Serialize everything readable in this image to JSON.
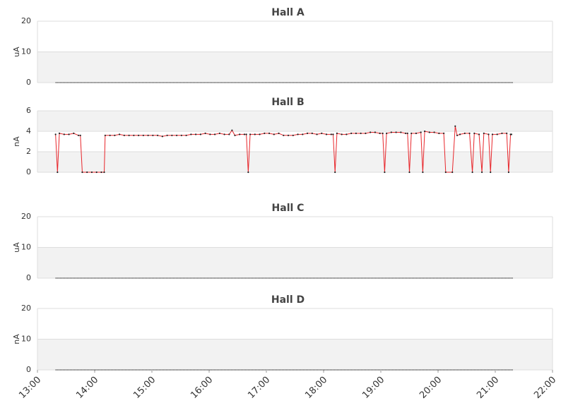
{
  "chart_data": [
    {
      "type": "line",
      "title": "Hall A",
      "y_label": "uA",
      "ylim": [
        0,
        20
      ],
      "yticks": [
        0,
        10,
        20
      ],
      "alternate_bands": true,
      "x": [
        "13:19",
        "13:29",
        "13:39",
        "13:49",
        "13:59",
        "14:09",
        "14:19",
        "14:29",
        "14:39",
        "14:49",
        "14:59",
        "15:09",
        "15:19",
        "15:29",
        "15:39",
        "15:49",
        "15:59",
        "16:09",
        "16:19",
        "16:29",
        "16:39",
        "16:49",
        "16:59",
        "17:09",
        "17:19",
        "17:29",
        "17:39",
        "17:49",
        "17:59",
        "18:09",
        "18:19",
        "18:29",
        "18:39",
        "18:49",
        "18:59",
        "19:09",
        "19:19",
        "19:29",
        "19:39",
        "19:49",
        "19:59",
        "20:09",
        "20:19",
        "20:29",
        "20:39",
        "20:49",
        "20:59",
        "21:09",
        "21:19"
      ],
      "color": "#333333",
      "dashed": true,
      "values": [
        0,
        0,
        0,
        0,
        0,
        0,
        0,
        0,
        0,
        0,
        0,
        0,
        0,
        0,
        0,
        0,
        0,
        0,
        0,
        0,
        0,
        0,
        0,
        0,
        0,
        0,
        0,
        0,
        0,
        0,
        0,
        0,
        0,
        0,
        0,
        0,
        0,
        0,
        0,
        0,
        0,
        0,
        0,
        0,
        0,
        0,
        0,
        0,
        0
      ]
    },
    {
      "type": "line",
      "title": "Hall B",
      "y_label": "nA",
      "ylim": [
        0,
        6
      ],
      "yticks": [
        0,
        2,
        4,
        6
      ],
      "alternate_bands": true,
      "x": [
        "13:19",
        "13:21",
        "13:23",
        "13:28",
        "13:33",
        "13:38",
        "13:43",
        "13:45",
        "13:47",
        "13:52",
        "13:57",
        "14:02",
        "14:07",
        "14:10",
        "14:11",
        "14:16",
        "14:21",
        "14:26",
        "14:31",
        "14:36",
        "14:41",
        "14:46",
        "14:51",
        "14:56",
        "15:01",
        "15:06",
        "15:11",
        "15:16",
        "15:21",
        "15:26",
        "15:31",
        "15:36",
        "15:41",
        "15:46",
        "15:51",
        "15:56",
        "16:01",
        "16:06",
        "16:11",
        "16:16",
        "16:21",
        "16:24",
        "16:27",
        "16:32",
        "16:37",
        "16:39",
        "16:41",
        "16:43",
        "16:48",
        "16:53",
        "16:58",
        "17:03",
        "17:08",
        "17:13",
        "17:18",
        "17:23",
        "17:28",
        "17:33",
        "17:38",
        "17:43",
        "17:48",
        "17:53",
        "17:58",
        "18:03",
        "18:08",
        "18:10",
        "18:12",
        "18:14",
        "18:19",
        "18:24",
        "18:29",
        "18:34",
        "18:39",
        "18:44",
        "18:49",
        "18:54",
        "18:59",
        "19:02",
        "19:04",
        "19:06",
        "19:11",
        "19:16",
        "19:21",
        "19:26",
        "19:28",
        "19:30",
        "19:32",
        "19:37",
        "19:42",
        "19:44",
        "19:46",
        "19:51",
        "19:56",
        "20:01",
        "20:06",
        "20:08",
        "20:15",
        "20:18",
        "20:20",
        "20:23",
        "20:28",
        "20:33",
        "20:36",
        "20:38",
        "20:43",
        "20:46",
        "20:48",
        "20:53",
        "20:55",
        "20:57",
        "21:02",
        "21:07",
        "21:12",
        "21:14",
        "21:16",
        "21:17"
      ],
      "color": "#e8262b",
      "marker_color": "#222222",
      "values": [
        3.7,
        0,
        3.8,
        3.7,
        3.7,
        3.8,
        3.6,
        3.6,
        0,
        0,
        0,
        0,
        0,
        0,
        3.6,
        3.6,
        3.6,
        3.7,
        3.6,
        3.6,
        3.6,
        3.6,
        3.6,
        3.6,
        3.6,
        3.6,
        3.5,
        3.6,
        3.6,
        3.6,
        3.6,
        3.6,
        3.7,
        3.7,
        3.7,
        3.8,
        3.7,
        3.7,
        3.8,
        3.7,
        3.7,
        4.1,
        3.6,
        3.7,
        3.7,
        3.7,
        0,
        3.7,
        3.7,
        3.7,
        3.8,
        3.8,
        3.7,
        3.8,
        3.6,
        3.6,
        3.6,
        3.7,
        3.7,
        3.8,
        3.8,
        3.7,
        3.8,
        3.7,
        3.7,
        3.7,
        0,
        3.8,
        3.7,
        3.7,
        3.8,
        3.8,
        3.8,
        3.8,
        3.9,
        3.9,
        3.8,
        3.8,
        0,
        3.8,
        3.9,
        3.9,
        3.9,
        3.8,
        3.8,
        0,
        3.8,
        3.8,
        3.9,
        0,
        4.0,
        3.9,
        3.9,
        3.8,
        3.8,
        0,
        0,
        4.5,
        3.6,
        3.7,
        3.8,
        3.8,
        0,
        3.8,
        3.7,
        0,
        3.8,
        3.7,
        0,
        3.7,
        3.7,
        3.8,
        3.8,
        0,
        3.7,
        3.7
      ]
    },
    {
      "type": "line",
      "title": "Hall C",
      "y_label": "uA",
      "ylim": [
        0,
        20
      ],
      "yticks": [
        0,
        10,
        20
      ],
      "alternate_bands": true,
      "x": [
        "13:19",
        "13:29",
        "13:39",
        "13:49",
        "13:59",
        "14:09",
        "14:19",
        "14:29",
        "14:39",
        "14:49",
        "14:59",
        "15:09",
        "15:19",
        "15:29",
        "15:39",
        "15:49",
        "15:59",
        "16:09",
        "16:19",
        "16:29",
        "16:39",
        "16:49",
        "16:59",
        "17:09",
        "17:19",
        "17:29",
        "17:39",
        "17:49",
        "17:59",
        "18:09",
        "18:19",
        "18:29",
        "18:39",
        "18:49",
        "18:59",
        "19:09",
        "19:19",
        "19:29",
        "19:39",
        "19:49",
        "19:59",
        "20:09",
        "20:19",
        "20:29",
        "20:39",
        "20:49",
        "20:59",
        "21:09",
        "21:19"
      ],
      "color": "#333333",
      "dashed": true,
      "values": [
        0,
        0,
        0,
        0,
        0,
        0,
        0,
        0,
        0,
        0,
        0,
        0,
        0,
        0,
        0,
        0,
        0,
        0,
        0,
        0,
        0,
        0,
        0,
        0,
        0,
        0,
        0,
        0,
        0,
        0,
        0,
        0,
        0,
        0,
        0,
        0,
        0,
        0,
        0,
        0,
        0,
        0,
        0,
        0,
        0,
        0,
        0,
        0,
        0
      ]
    },
    {
      "type": "line",
      "title": "Hall D",
      "y_label": "nA",
      "ylim": [
        0,
        20
      ],
      "yticks": [
        0,
        10,
        20
      ],
      "alternate_bands": true,
      "xlim": [
        "13:00",
        "22:00"
      ],
      "xticks": [
        "13:00",
        "14:00",
        "15:00",
        "16:00",
        "17:00",
        "18:00",
        "19:00",
        "20:00",
        "21:00",
        "22:00"
      ],
      "x": [
        "13:19",
        "13:29",
        "13:39",
        "13:49",
        "13:59",
        "14:09",
        "14:19",
        "14:29",
        "14:39",
        "14:49",
        "14:59",
        "15:09",
        "15:19",
        "15:29",
        "15:39",
        "15:49",
        "15:59",
        "16:09",
        "16:19",
        "16:29",
        "16:39",
        "16:49",
        "16:59",
        "17:09",
        "17:19",
        "17:29",
        "17:39",
        "17:49",
        "17:59",
        "18:09",
        "18:19",
        "18:29",
        "18:39",
        "18:49",
        "18:59",
        "19:09",
        "19:19",
        "19:29",
        "19:39",
        "19:49",
        "19:59",
        "20:09",
        "20:19",
        "20:29",
        "20:39",
        "20:49",
        "20:59",
        "21:09",
        "21:19"
      ],
      "color": "#333333",
      "dashed": true,
      "values": [
        0,
        0,
        0,
        0,
        0,
        0,
        0,
        0,
        0,
        0,
        0,
        0,
        0,
        0,
        0,
        0,
        0,
        0,
        0,
        0,
        0,
        0,
        0,
        0,
        0,
        0,
        0,
        0,
        0,
        0,
        0,
        0,
        0,
        0,
        0,
        0,
        0,
        0,
        0,
        0,
        0,
        0,
        0,
        0,
        0,
        0,
        0,
        0,
        0
      ]
    }
  ]
}
